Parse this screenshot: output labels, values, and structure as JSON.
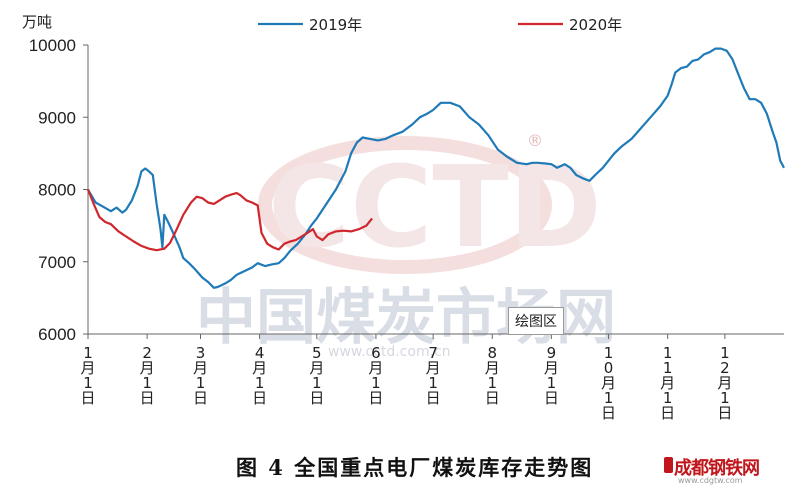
{
  "chart_data": {
    "type": "line",
    "y_unit_label": "万吨",
    "ylim": [
      6000,
      10000
    ],
    "y_ticks": [
      6000,
      7000,
      8000,
      9000,
      10000
    ],
    "x_range_days": [
      0,
      365
    ],
    "x_tick_labels": [
      "1月1日",
      "2月1日",
      "3月1日",
      "4月1日",
      "5月1日",
      "6月1日",
      "7月1日",
      "8月1日",
      "9月1日",
      "10月1日",
      "11月1日",
      "12月1日"
    ],
    "x_tick_days": [
      0,
      31,
      59,
      90,
      120,
      151,
      181,
      212,
      243,
      273,
      304,
      334
    ],
    "legend_position": "top",
    "grid": false,
    "series": [
      {
        "name": "2019年",
        "color": "#1f7ab8",
        "points": [
          [
            0,
            8000
          ],
          [
            4,
            7820
          ],
          [
            8,
            7760
          ],
          [
            12,
            7700
          ],
          [
            15,
            7750
          ],
          [
            18,
            7680
          ],
          [
            20,
            7720
          ],
          [
            23,
            7850
          ],
          [
            26,
            8050
          ],
          [
            28,
            8250
          ],
          [
            30,
            8290
          ],
          [
            32,
            8250
          ],
          [
            34,
            8200
          ],
          [
            36,
            7800
          ],
          [
            38,
            7450
          ],
          [
            39,
            7200
          ],
          [
            40,
            7650
          ],
          [
            42,
            7550
          ],
          [
            45,
            7380
          ],
          [
            48,
            7200
          ],
          [
            50,
            7050
          ],
          [
            53,
            6980
          ],
          [
            56,
            6900
          ],
          [
            60,
            6780
          ],
          [
            63,
            6720
          ],
          [
            66,
            6640
          ],
          [
            68,
            6650
          ],
          [
            72,
            6700
          ],
          [
            75,
            6750
          ],
          [
            78,
            6820
          ],
          [
            82,
            6870
          ],
          [
            86,
            6920
          ],
          [
            89,
            6980
          ],
          [
            93,
            6940
          ],
          [
            96,
            6960
          ],
          [
            100,
            6980
          ],
          [
            103,
            7050
          ],
          [
            106,
            7150
          ],
          [
            110,
            7250
          ],
          [
            114,
            7380
          ],
          [
            117,
            7500
          ],
          [
            120,
            7600
          ],
          [
            125,
            7800
          ],
          [
            130,
            8000
          ],
          [
            135,
            8250
          ],
          [
            138,
            8500
          ],
          [
            141,
            8650
          ],
          [
            144,
            8720
          ],
          [
            148,
            8700
          ],
          [
            152,
            8680
          ],
          [
            156,
            8700
          ],
          [
            160,
            8750
          ],
          [
            165,
            8800
          ],
          [
            170,
            8900
          ],
          [
            174,
            9000
          ],
          [
            178,
            9050
          ],
          [
            181,
            9100
          ],
          [
            185,
            9200
          ],
          [
            190,
            9200
          ],
          [
            195,
            9150
          ],
          [
            200,
            9000
          ],
          [
            205,
            8900
          ],
          [
            210,
            8750
          ],
          [
            215,
            8550
          ],
          [
            220,
            8450
          ],
          [
            225,
            8370
          ],
          [
            230,
            8350
          ],
          [
            233,
            8370
          ],
          [
            236,
            8370
          ],
          [
            240,
            8360
          ],
          [
            243,
            8350
          ],
          [
            246,
            8300
          ],
          [
            250,
            8350
          ],
          [
            253,
            8300
          ],
          [
            256,
            8200
          ],
          [
            260,
            8150
          ],
          [
            263,
            8120
          ],
          [
            266,
            8200
          ],
          [
            270,
            8300
          ],
          [
            273,
            8400
          ],
          [
            276,
            8500
          ],
          [
            280,
            8600
          ],
          [
            285,
            8700
          ],
          [
            290,
            8850
          ],
          [
            295,
            9000
          ],
          [
            300,
            9150
          ],
          [
            304,
            9300
          ],
          [
            306,
            9450
          ],
          [
            308,
            9620
          ],
          [
            311,
            9680
          ],
          [
            314,
            9700
          ],
          [
            317,
            9780
          ],
          [
            320,
            9800
          ],
          [
            323,
            9870
          ],
          [
            326,
            9900
          ],
          [
            329,
            9950
          ],
          [
            332,
            9950
          ],
          [
            335,
            9920
          ],
          [
            338,
            9800
          ],
          [
            341,
            9600
          ],
          [
            344,
            9400
          ],
          [
            347,
            9250
          ],
          [
            350,
            9250
          ],
          [
            353,
            9200
          ],
          [
            356,
            9050
          ],
          [
            359,
            8800
          ],
          [
            361,
            8650
          ],
          [
            363,
            8400
          ],
          [
            365,
            8300
          ]
        ]
      },
      {
        "name": "2020年",
        "color": "#d0262d",
        "points": [
          [
            0,
            8000
          ],
          [
            3,
            7800
          ],
          [
            6,
            7620
          ],
          [
            9,
            7550
          ],
          [
            12,
            7520
          ],
          [
            16,
            7420
          ],
          [
            20,
            7350
          ],
          [
            24,
            7280
          ],
          [
            28,
            7220
          ],
          [
            32,
            7180
          ],
          [
            36,
            7160
          ],
          [
            40,
            7180
          ],
          [
            43,
            7260
          ],
          [
            46,
            7420
          ],
          [
            50,
            7650
          ],
          [
            54,
            7820
          ],
          [
            57,
            7900
          ],
          [
            60,
            7880
          ],
          [
            63,
            7820
          ],
          [
            66,
            7800
          ],
          [
            69,
            7850
          ],
          [
            72,
            7900
          ],
          [
            75,
            7930
          ],
          [
            78,
            7950
          ],
          [
            80,
            7920
          ],
          [
            83,
            7850
          ],
          [
            86,
            7820
          ],
          [
            89,
            7780
          ],
          [
            91,
            7400
          ],
          [
            94,
            7250
          ],
          [
            97,
            7200
          ],
          [
            100,
            7170
          ],
          [
            103,
            7250
          ],
          [
            106,
            7280
          ],
          [
            109,
            7300
          ],
          [
            112,
            7350
          ],
          [
            115,
            7400
          ],
          [
            118,
            7450
          ],
          [
            120,
            7350
          ],
          [
            123,
            7300
          ],
          [
            126,
            7380
          ],
          [
            130,
            7420
          ],
          [
            134,
            7430
          ],
          [
            138,
            7420
          ],
          [
            142,
            7450
          ],
          [
            146,
            7500
          ],
          [
            149,
            7600
          ]
        ]
      }
    ]
  },
  "watermark": {
    "logo_text": "CCTD",
    "registered_mark": "®",
    "chinese_text": "中国煤炭市场网",
    "url": "www.cctd.com.cn"
  },
  "tooltip": "绘图区",
  "caption": "图 4  全国重点电厂煤炭库存走势图",
  "site_logo": {
    "name": "成都钢铁网",
    "url": "www.cdgtw.com"
  }
}
